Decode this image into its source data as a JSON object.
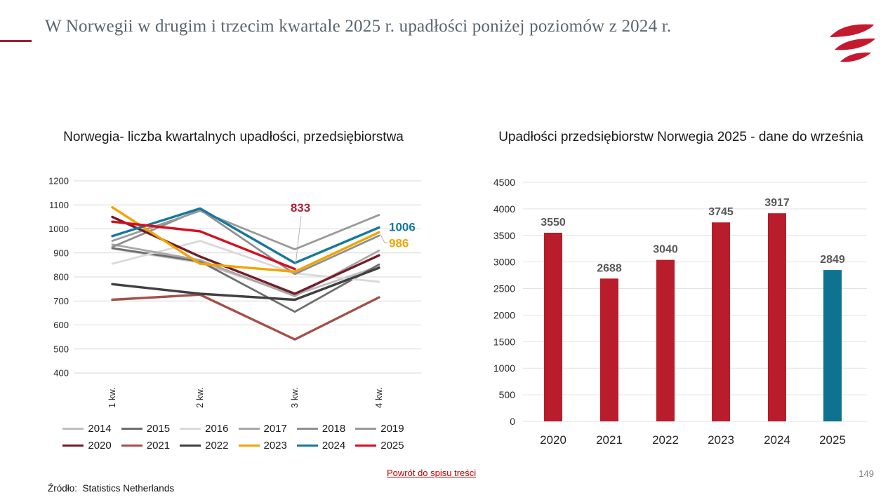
{
  "header": {
    "title": "W Norwegii w drugim i trzecim kwartale 2025 r. upadłości poniżej poziomów z 2024 r.",
    "title_color": "#59656f",
    "accent_dash_color": "#9d2235",
    "logo_icon": "triple-wave-flag-icon",
    "logo_color": "#c41a2f"
  },
  "chart_data": [
    {
      "type": "line",
      "title": "Norwegia- liczba kwartalnych upadłości, przedsiębiorstwa",
      "categories": [
        "1 kw.",
        "2 kw.",
        "3 kw.",
        "4 kw."
      ],
      "ylim": [
        400,
        1200
      ],
      "ytick_step": 100,
      "grid": true,
      "legend_position": "bottom",
      "series": [
        {
          "name": "2014",
          "color": "#bfbfbf",
          "values": [
            918,
            860,
            725,
            845
          ]
        },
        {
          "name": "2015",
          "color": "#6e6e6e",
          "values": [
            920,
            865,
            655,
            852
          ]
        },
        {
          "name": "2016",
          "color": "#d9d9d9",
          "values": [
            855,
            950,
            815,
            780
          ]
        },
        {
          "name": "2017",
          "color": "#a8a8a8",
          "values": [
            935,
            870,
            720,
            910
          ]
        },
        {
          "name": "2018",
          "color": "#8f8f8f",
          "values": [
            925,
            1080,
            812,
            972
          ]
        },
        {
          "name": "2019",
          "color": "#9a9a9a",
          "values": [
            950,
            1075,
            915,
            1058
          ]
        },
        {
          "name": "2020",
          "color": "#731d29",
          "values": [
            1050,
            885,
            730,
            890
          ]
        },
        {
          "name": "2021",
          "color": "#a5504a",
          "values": [
            705,
            726,
            540,
            715
          ]
        },
        {
          "name": "2022",
          "color": "#404040",
          "values": [
            770,
            730,
            705,
            838
          ]
        },
        {
          "name": "2023",
          "color": "#f0a500",
          "values": [
            1090,
            855,
            822,
            986
          ]
        },
        {
          "name": "2024",
          "color": "#15799b",
          "values": [
            970,
            1085,
            858,
            1006
          ]
        },
        {
          "name": "2025",
          "color": "#d40f20",
          "values": [
            1030,
            990,
            833,
            null
          ]
        }
      ],
      "annotations": [
        {
          "text": "833",
          "series": "2025",
          "point_index": 2,
          "color": "#b41f3a"
        },
        {
          "text": "1006",
          "series": "2024",
          "point_index": 3,
          "color": "#15799b"
        },
        {
          "text": "986",
          "series": "2023",
          "point_index": 3,
          "color": "#f0a500"
        }
      ],
      "legend_rows": [
        [
          "2014",
          "2015",
          "2016",
          "2017",
          "2018",
          "2019"
        ],
        [
          "2020",
          "2021",
          "2022",
          "2023",
          "2024",
          "2025"
        ]
      ]
    },
    {
      "type": "bar",
      "title": "Upadłości przedsiębiorstw Norwegia 2025 - dane do września",
      "categories": [
        "2020",
        "2021",
        "2022",
        "2023",
        "2024",
        "2025"
      ],
      "values": [
        3550,
        2688,
        3040,
        3745,
        3917,
        2849
      ],
      "bar_colors": [
        "#b91c2b",
        "#b91c2b",
        "#b91c2b",
        "#b91c2b",
        "#b91c2b",
        "#0e7291"
      ],
      "value_label_color": "#595959",
      "ylim": [
        0,
        4500
      ],
      "ytick_step": 500,
      "grid": true
    }
  ],
  "footer": {
    "source": "Źródło:  Statistics Netherlands",
    "link_label": "Powrót do spisu treści",
    "link_color": "#c00000",
    "page_number": "149"
  }
}
